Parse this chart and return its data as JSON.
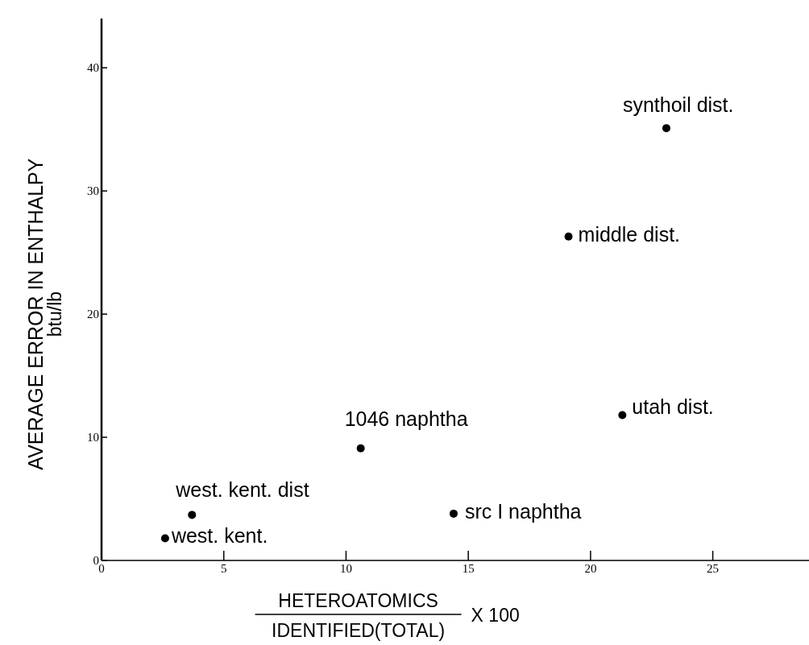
{
  "chart_data": {
    "type": "scatter",
    "xlabel": "HETEROATOMICS\nIDENTIFIED(TOTAL)\nX 100",
    "ylabel": "AVERAGE ERROR IN ENTHALPY\nbtu/lb",
    "series": [
      {
        "color": "#000000",
        "x": [
          2.6,
          3.7,
          10.6,
          14.4,
          21.3,
          19.1,
          23.1
        ],
        "values": [
          1.8,
          3.7,
          9.1,
          3.8,
          11.8,
          26.3,
          35.1
        ]
      }
    ],
    "xlim": [
      0,
      29
    ],
    "ylim": [
      0,
      44
    ],
    "xticks": [
      0,
      5,
      10,
      15,
      20,
      25
    ],
    "yticks": [
      0,
      10,
      20,
      30,
      40
    ],
    "marker": "circle",
    "grid": false,
    "annotations": [
      {
        "text": "west. kent.",
        "x": 2.6,
        "y": 1.8
      },
      {
        "text": "west. kent. dist",
        "x": 3.7,
        "y": 3.7
      },
      {
        "text": "1046 naphtha",
        "x": 10.6,
        "y": 9.1
      },
      {
        "text": "src I naphtha",
        "x": 14.4,
        "y": 3.8
      },
      {
        "text": "utah dist.",
        "x": 21.3,
        "y": 11.8
      },
      {
        "text": "middle dist.",
        "x": 19.1,
        "y": 26.3
      },
      {
        "text": "synthoil dist.",
        "x": 23.1,
        "y": 35.1
      }
    ]
  }
}
